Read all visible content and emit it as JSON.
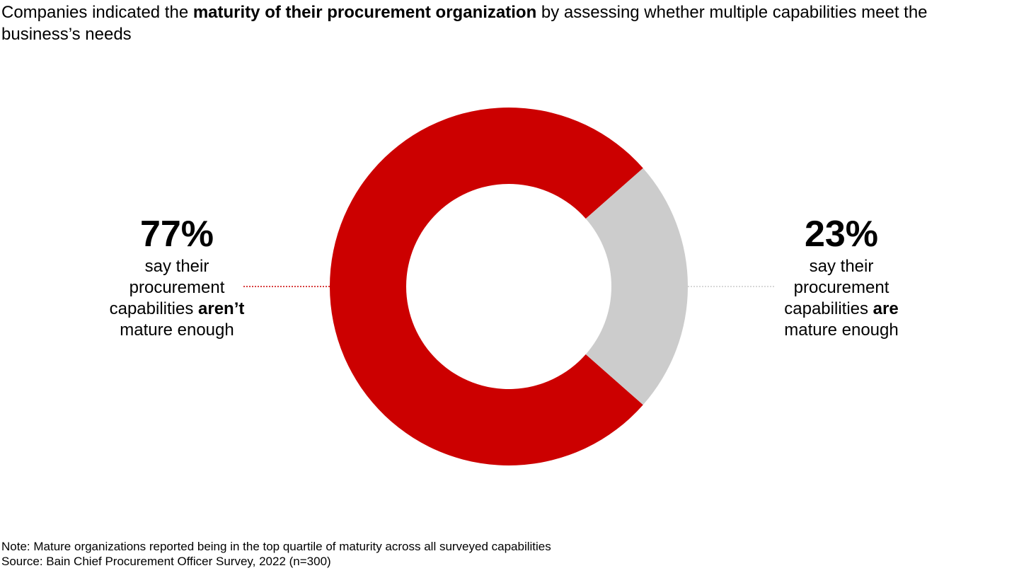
{
  "title": {
    "prefix": "Companies indicated the ",
    "bold": "maturity of their procurement organization",
    "suffix": " by assessing whether multiple capabilities meet the business’s needs"
  },
  "chart_data": {
    "type": "pie",
    "subtype": "donut",
    "labels": [
      "aren’t mature enough",
      "are mature enough"
    ],
    "values": [
      77,
      23
    ],
    "unit": "%",
    "colors": [
      "#cc0000",
      "#cccccc"
    ],
    "annotations": [
      {
        "value_label": "77%",
        "line1": "say their",
        "line2": "procurement",
        "line3_plain": "capabilities ",
        "line3_bold": "aren’t",
        "line4_bold": "mature enough"
      },
      {
        "value_label": "23%",
        "line1": "say their",
        "line2": "procurement",
        "line3_plain": "capabilities ",
        "line3_bold": "are",
        "line4_bold": "mature enough"
      }
    ]
  },
  "footer": {
    "note": "Note: Mature organizations reported being in the top quartile of maturity across all surveyed capabilities",
    "source": "Source: Bain Chief Procurement Officer Survey, 2022 (n=300)"
  }
}
